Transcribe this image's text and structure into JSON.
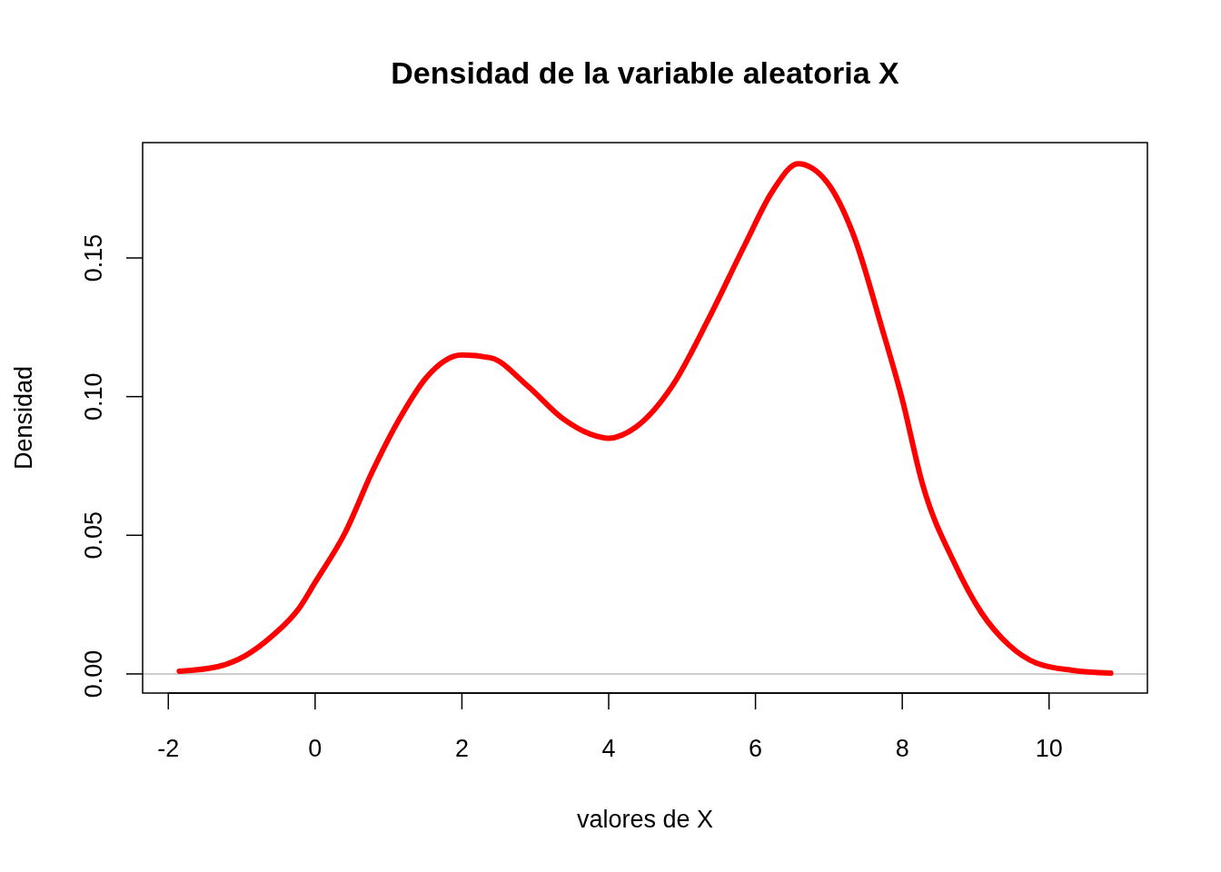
{
  "chart_data": {
    "type": "line",
    "title": "Densidad de la variable aleatoria X",
    "xlabel": "valores de X",
    "ylabel": "Densidad",
    "series": [
      {
        "color": "#ff0000",
        "x": [
          -1.85,
          -1.33,
          -0.95,
          -0.58,
          -0.21,
          0,
          0.41,
          0.78,
          1.15,
          1.52,
          2,
          2.39,
          2.89,
          3.38,
          3.75,
          4,
          4.37,
          4.87,
          5.36,
          5.86,
          6.23,
          6.58,
          6.97,
          7.34,
          7.72,
          8,
          8.27,
          8.71,
          9.08,
          9.45,
          9.82,
          10.32,
          10.84
        ],
        "values": [
          0.001,
          0.0026,
          0.0066,
          0.0138,
          0.024,
          0.033,
          0.051,
          0.073,
          0.092,
          0.107,
          0.115,
          0.114,
          0.104,
          0.092,
          0.0865,
          0.085,
          0.089,
          0.104,
          0.128,
          0.155,
          0.174,
          0.184,
          0.1775,
          0.158,
          0.125,
          0.099,
          0.069,
          0.04,
          0.022,
          0.0105,
          0.004,
          0.0013,
          0.0003
        ]
      }
    ],
    "xlim": [
      -2.35,
      11.34
    ],
    "ylim": [
      -0.0069,
      0.1916
    ],
    "xticks": [
      -2,
      0,
      2,
      4,
      6,
      8,
      10
    ],
    "yticks": [
      {
        "value": 0,
        "label": "0.00"
      },
      {
        "value": 0.05,
        "label": "0.05"
      },
      {
        "value": 0.1,
        "label": "0.10"
      },
      {
        "value": 0.15,
        "label": "0.15"
      }
    ],
    "ref_lines": [
      {
        "axis": "y",
        "value": 0,
        "color": "#bebebe"
      }
    ],
    "grid": false,
    "marker": "none",
    "line_style": "solid"
  }
}
